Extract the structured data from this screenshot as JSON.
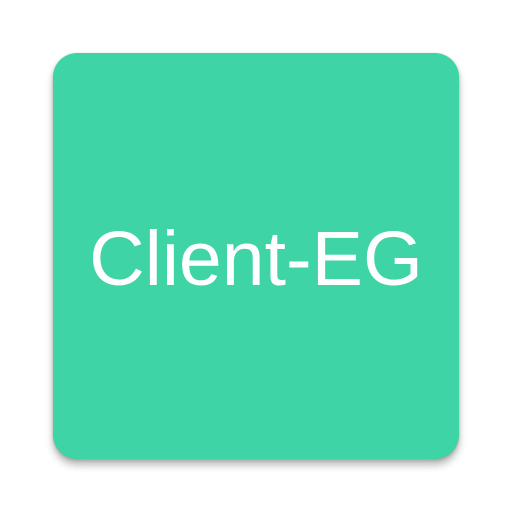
{
  "app_icon": {
    "label": "Client-EG",
    "background_color": "#3fd4a6",
    "text_color": "#ffffff"
  }
}
